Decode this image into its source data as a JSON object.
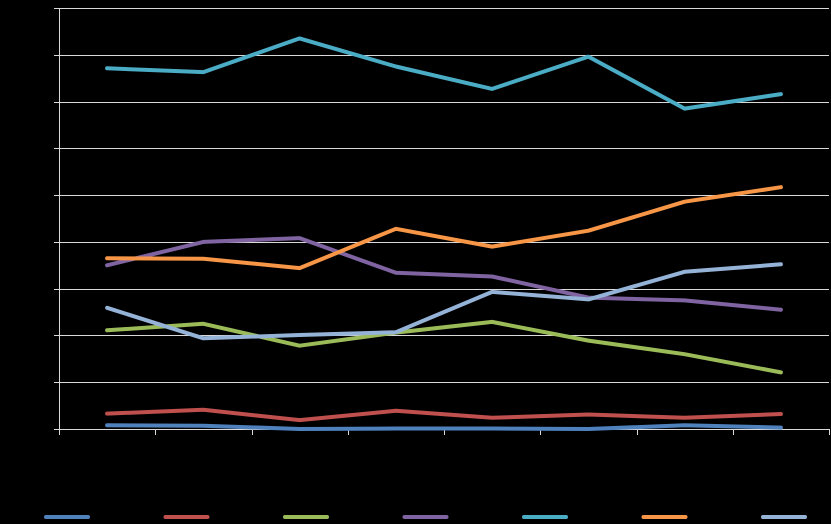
{
  "chart_data": {
    "type": "line",
    "title": "",
    "xlabel": "",
    "ylabel": "",
    "x": [
      1,
      2,
      3,
      4,
      5,
      6,
      7,
      8
    ],
    "ylim": [
      0,
      9
    ],
    "yticks": [
      0,
      1,
      2,
      3,
      4,
      5,
      6,
      7,
      8,
      9
    ],
    "grid": true,
    "legend": "bottom",
    "series": [
      {
        "color": "#4f81bd",
        "values": [
          0.08,
          0.07,
          0.0,
          0.01,
          0.01,
          0.0,
          0.08,
          0.03
        ]
      },
      {
        "color": "#c0504d",
        "values": [
          0.33,
          0.41,
          0.19,
          0.39,
          0.24,
          0.31,
          0.24,
          0.32
        ]
      },
      {
        "color": "#9bbb59",
        "values": [
          2.11,
          2.25,
          1.78,
          2.06,
          2.29,
          1.89,
          1.6,
          1.21
        ]
      },
      {
        "color": "#8064a2",
        "values": [
          3.5,
          4.0,
          4.08,
          3.34,
          3.26,
          2.81,
          2.75,
          2.55
        ]
      },
      {
        "color": "#4bacc6",
        "values": [
          7.71,
          7.63,
          8.35,
          7.75,
          7.27,
          7.96,
          6.85,
          7.16
        ]
      },
      {
        "color": "#f79646",
        "values": [
          3.65,
          3.64,
          3.44,
          4.28,
          3.9,
          4.24,
          4.86,
          5.17
        ]
      },
      {
        "color": "#95b3d7",
        "values": [
          2.59,
          1.94,
          2.01,
          2.07,
          2.93,
          2.77,
          3.36,
          3.52
        ]
      }
    ]
  }
}
